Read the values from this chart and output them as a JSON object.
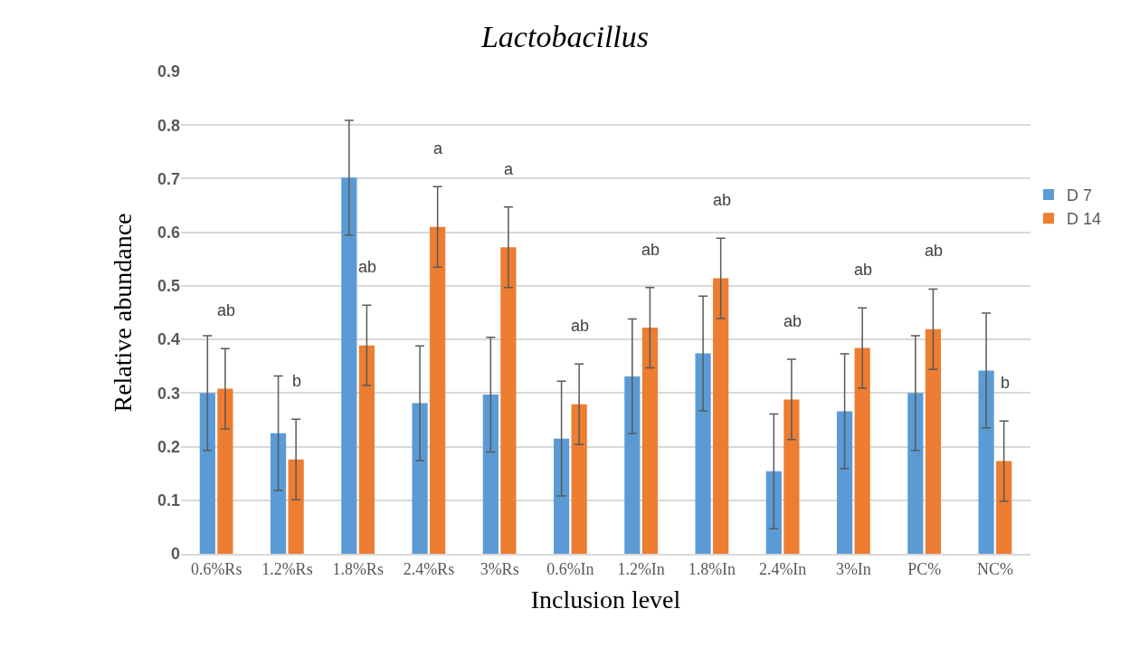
{
  "chart_data": {
    "type": "bar",
    "title": "Lactobacillus",
    "xlabel": "Inclusion level",
    "ylabel": "Relative abundance",
    "categories": [
      "0.6%Rs",
      "1.2%Rs",
      "1.8%Rs",
      "2.4%Rs",
      "3%Rs",
      "0.6%In",
      "1.2%In",
      "1.8%In",
      "2.4%In",
      "3%In",
      "PC%",
      "NC%"
    ],
    "series": [
      {
        "name": "D 7",
        "color": "#5b9bd5",
        "values": [
          0.3,
          0.225,
          0.702,
          0.281,
          0.297,
          0.215,
          0.331,
          0.374,
          0.154,
          0.266,
          0.3,
          0.342
        ],
        "errors": [
          0.107,
          0.107,
          0.107,
          0.107,
          0.107,
          0.107,
          0.107,
          0.107,
          0.107,
          0.107,
          0.107,
          0.107
        ]
      },
      {
        "name": "D 14",
        "color": "#ed7d31",
        "values": [
          0.308,
          0.176,
          0.389,
          0.61,
          0.572,
          0.279,
          0.422,
          0.514,
          0.288,
          0.384,
          0.419,
          0.173
        ],
        "errors": [
          0.075,
          0.075,
          0.075,
          0.075,
          0.075,
          0.075,
          0.075,
          0.075,
          0.075,
          0.075,
          0.075,
          0.075
        ]
      }
    ],
    "ylim": [
      0,
      0.9
    ],
    "yticks": [
      0,
      0.1,
      0.2,
      0.3,
      0.4,
      0.5,
      0.6,
      0.7,
      0.8,
      0.9
    ],
    "grid": "y",
    "legend": "right",
    "annotations": [
      "ab",
      "b",
      "ab",
      "a",
      "a",
      "ab",
      "ab",
      "ab",
      "ab",
      "ab",
      "ab",
      "b"
    ]
  }
}
